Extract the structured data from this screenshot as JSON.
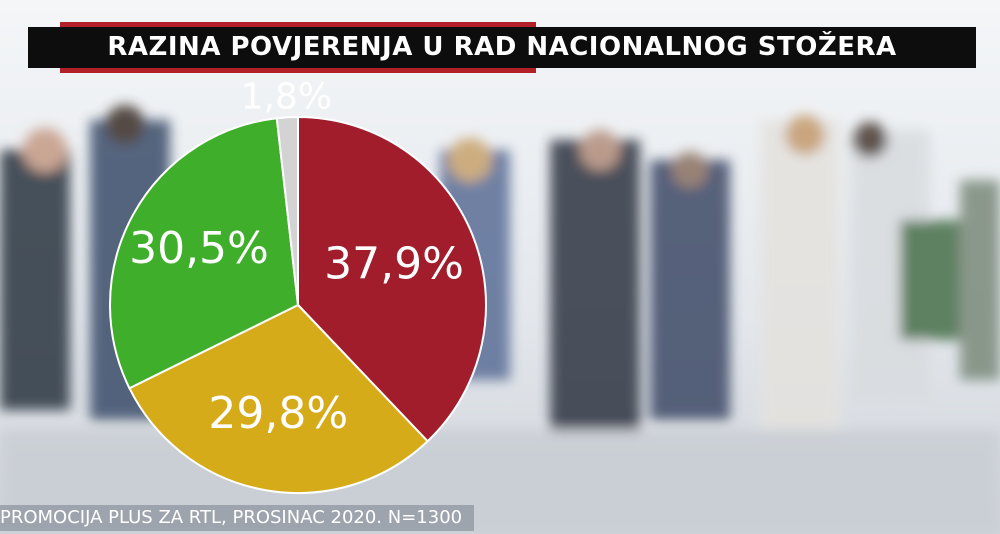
{
  "chart_data": {
    "type": "pie",
    "title": "RAZINA POVJERENJA U RAD NACIONALNOG STOŽERA",
    "slices": [
      {
        "label": "37,9%",
        "value": 37.9,
        "color": "#a11d2b"
      },
      {
        "label": "29,8%",
        "value": 29.8,
        "color": "#d6ab1a"
      },
      {
        "label": "30,5%",
        "value": 30.5,
        "color": "#3fae2a"
      },
      {
        "label": "1,8%",
        "value": 1.8,
        "color": "#d3d3d3"
      }
    ],
    "legend": "none"
  },
  "source": "PROMOCIJA PLUS ZA RTL, PROSINAC 2020. N=1300"
}
